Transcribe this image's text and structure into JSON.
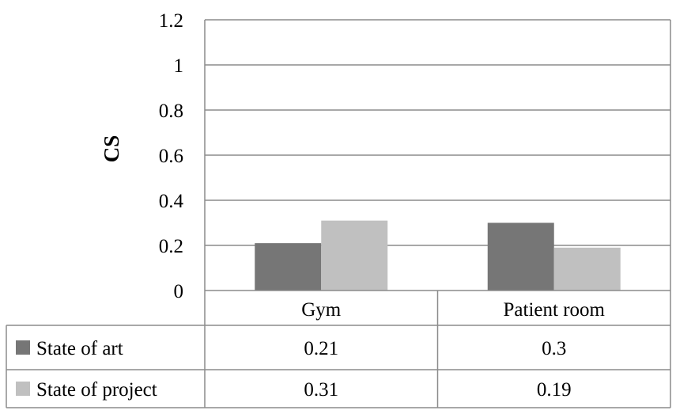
{
  "chart_data": {
    "type": "bar",
    "ylabel": "CS",
    "categories": [
      "Gym",
      "Patient room"
    ],
    "series": [
      {
        "name": "State of art",
        "values": [
          0.21,
          0.3
        ],
        "value_labels": [
          "0.21",
          "0.3"
        ],
        "color": "#767676"
      },
      {
        "name": "State of project",
        "values": [
          0.31,
          0.19
        ],
        "value_labels": [
          "0.31",
          "0.19"
        ],
        "color": "#c0c0c0"
      }
    ],
    "ylim": [
      0,
      1.2
    ],
    "yticks": [
      "0",
      "0.2",
      "0.4",
      "0.6",
      "0.8",
      "1",
      "1.2"
    ],
    "grid": true,
    "data_table": true
  }
}
